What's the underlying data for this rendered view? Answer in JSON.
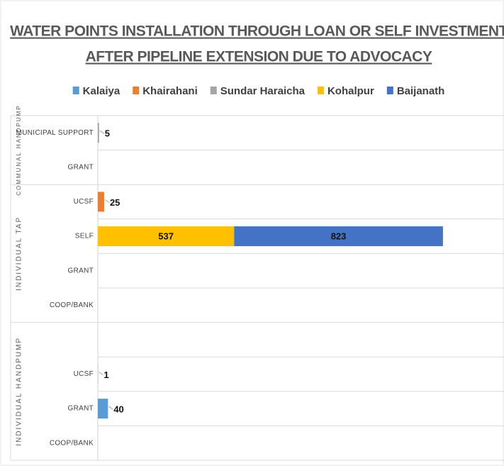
{
  "chart_data": {
    "type": "stacked-bar-horizontal",
    "title": [
      "WATER POINTS INSTALLATION THROUGH LOAN OR SELF INVESTMENT",
      "AFTER PIPELINE EXTENSION DUE TO ADVOCACY"
    ],
    "groups": [
      {
        "label": "COMMUNAL HANDPUMP",
        "categories": [
          "MUNICIPAL SUPPORT",
          "GRANT"
        ]
      },
      {
        "label": "INDIVIDUAL TAP",
        "categories": [
          "UCSF",
          "SELF",
          "GRANT",
          "COOP/BANK"
        ]
      },
      {
        "label": "INDIVIDUAL HANDPUMP",
        "categories": [
          null,
          "UCSF",
          "GRANT",
          "COOP/BANK"
        ]
      }
    ],
    "series": [
      {
        "name": "Kalaiya",
        "color": "#5b9bd5",
        "values": [
          null,
          null,
          null,
          null,
          null,
          null,
          null,
          null,
          40,
          null
        ]
      },
      {
        "name": "Khairahani",
        "color": "#ed7d31",
        "values": [
          null,
          null,
          25,
          null,
          null,
          null,
          null,
          null,
          null,
          null
        ]
      },
      {
        "name": "Sundar Haraicha",
        "color": "#a5a5a5",
        "values": [
          5,
          null,
          null,
          null,
          null,
          null,
          null,
          1,
          null,
          null
        ]
      },
      {
        "name": "Kohalpur",
        "color": "#ffc000",
        "values": [
          null,
          null,
          null,
          537,
          null,
          null,
          null,
          null,
          null,
          null
        ]
      },
      {
        "name": "Baijanath",
        "color": "#4472c4",
        "values": [
          null,
          null,
          null,
          823,
          null,
          null,
          null,
          null,
          null,
          null
        ]
      }
    ],
    "legend": "top"
  }
}
